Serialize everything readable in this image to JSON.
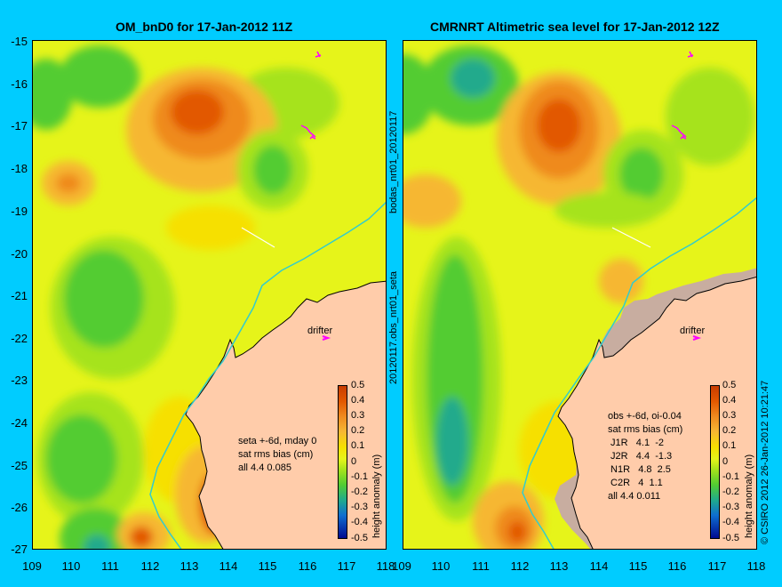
{
  "left_panel": {
    "title": "OM_bnD0 for 17-Jan-2012 11Z",
    "annotation": "seta +-6d, mday 0\nsat rms bias (cm)\nall 4.4 0.085",
    "drifter_label": "drifter"
  },
  "right_panel": {
    "title": "CMRNRT Altimetric sea level  for 17-Jan-2012 12Z",
    "annotation": "obs +-6d, oi-0.04\nsat rms bias (cm)\n J1R   4.1  -2\n J2R   4.4  -1.3\n N1R   4.8  2.5\n C2R   4  1.1\nall 4.4 0.011",
    "drifter_label": "drifter"
  },
  "y_axis_labels": [
    "-15",
    "-16",
    "-17",
    "-18",
    "-19",
    "-20",
    "-21",
    "-22",
    "-23",
    "-24",
    "-25",
    "-26",
    "-27"
  ],
  "x_axis_labels": [
    "109",
    "110",
    "111",
    "112",
    "113",
    "114",
    "115",
    "116",
    "117",
    "118"
  ],
  "colorbar": {
    "title": "height anomaly (m)",
    "ticks": [
      "0.5",
      "0.4",
      "0.3",
      "0.2",
      "0.1",
      "0",
      "-0.1",
      "-0.2",
      "-0.3",
      "-0.4",
      "-0.5"
    ],
    "colors": [
      "#c83c00",
      "#e25800",
      "#ef8a1f",
      "#f6b733",
      "#f6e000",
      "#e6f41a",
      "#a6e31b",
      "#52cc32",
      "#20aa8c",
      "#0e6ed0",
      "#000a90"
    ]
  },
  "vertical_labels": {
    "middle_top": "bodas_nrt01_20120117",
    "middle_bottom": "20120117.obs_nrt01_seta",
    "right_credit": "© CSIRO 2012   26-Jan-2012 10:21:47"
  },
  "colors": {
    "background": "#00ccff",
    "land": "#ffccaa",
    "coastline": "#000000",
    "isobath": "#33cccc",
    "drifter": "#ff00ff"
  }
}
